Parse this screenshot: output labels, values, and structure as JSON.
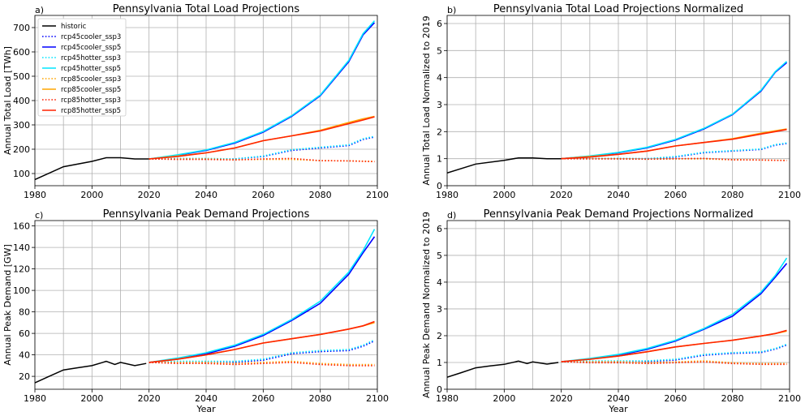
{
  "chart_data": [
    {
      "type": "line",
      "panel_label": "a)",
      "title": "Pennsylvania Total Load Projections",
      "xlabel": "",
      "ylabel": "Annual Total Load [TWh]",
      "xlim": [
        1980,
        2100
      ],
      "ylim": [
        50,
        750
      ],
      "xticks": [
        "1980",
        "2000",
        "2020",
        "2040",
        "2060",
        "2080",
        "2100"
      ],
      "yticks": [
        "100",
        "200",
        "300",
        "400",
        "500",
        "600",
        "700"
      ],
      "ytick_values": [
        100,
        200,
        300,
        400,
        500,
        600,
        700
      ],
      "grid": true,
      "legend": "top-left",
      "historic": {
        "name": "historic",
        "color": "#000000",
        "x": [
          1980,
          1990,
          2000,
          2005,
          2010,
          2015,
          2020
        ],
        "y": [
          75,
          128,
          150,
          165,
          165,
          160,
          160
        ]
      },
      "scenario_x": [
        2020,
        2030,
        2040,
        2050,
        2060,
        2070,
        2080,
        2090,
        2095,
        2099
      ],
      "series": [
        {
          "name": "rcp45cooler_ssp3",
          "color": "#0000ff",
          "dash": "dot",
          "values": [
            160,
            160,
            160,
            160,
            170,
            195,
            205,
            215,
            240,
            250
          ]
        },
        {
          "name": "rcp45cooler_ssp5",
          "color": "#0000ff",
          "dash": "solid",
          "values": [
            160,
            175,
            195,
            225,
            270,
            335,
            420,
            560,
            670,
            720
          ]
        },
        {
          "name": "rcp45hotter_ssp3",
          "color": "#00e5ff",
          "dash": "dot",
          "values": [
            160,
            162,
            162,
            160,
            172,
            198,
            208,
            218,
            243,
            253
          ]
        },
        {
          "name": "rcp45hotter_ssp5",
          "color": "#00e5ff",
          "dash": "solid",
          "values": [
            160,
            177,
            197,
            228,
            273,
            338,
            423,
            565,
            675,
            728
          ]
        },
        {
          "name": "rcp85cooler_ssp3",
          "color": "#ffa500",
          "dash": "dot",
          "values": [
            160,
            160,
            160,
            157,
            158,
            158,
            153,
            152,
            151,
            150
          ]
        },
        {
          "name": "rcp85cooler_ssp5",
          "color": "#ffa500",
          "dash": "solid",
          "values": [
            160,
            172,
            185,
            205,
            235,
            255,
            278,
            310,
            325,
            335
          ]
        },
        {
          "name": "rcp85hotter_ssp3",
          "color": "#ff2200",
          "dash": "dot",
          "values": [
            160,
            158,
            158,
            156,
            160,
            162,
            153,
            152,
            150,
            149
          ]
        },
        {
          "name": "rcp85hotter_ssp5",
          "color": "#ff2200",
          "dash": "solid",
          "values": [
            160,
            170,
            185,
            205,
            235,
            255,
            275,
            305,
            320,
            333
          ]
        }
      ]
    },
    {
      "type": "line",
      "panel_label": "b)",
      "title": "Pennsylvania Total Load Projections Normalized",
      "xlabel": "",
      "ylabel": "Annual Total Load Normalized to 2019",
      "xlim": [
        1980,
        2100
      ],
      "ylim": [
        0,
        6.3
      ],
      "xticks": [
        "1980",
        "2000",
        "2020",
        "2040",
        "2060",
        "2080",
        "2100"
      ],
      "yticks": [
        "0",
        "1",
        "2",
        "3",
        "4",
        "5",
        "6"
      ],
      "ytick_values": [
        0,
        1,
        2,
        3,
        4,
        5,
        6
      ],
      "grid": true,
      "historic": {
        "name": "historic",
        "color": "#000000",
        "x": [
          1980,
          1990,
          2000,
          2005,
          2010,
          2015,
          2020
        ],
        "y": [
          0.47,
          0.8,
          0.94,
          1.03,
          1.03,
          1.0,
          1.0
        ]
      },
      "scenario_x": [
        2020,
        2030,
        2040,
        2050,
        2060,
        2070,
        2080,
        2090,
        2095,
        2099
      ],
      "series": [
        {
          "name": "rcp45cooler_ssp3",
          "color": "#0000ff",
          "dash": "dot",
          "values": [
            1.0,
            1.0,
            1.0,
            1.0,
            1.06,
            1.22,
            1.28,
            1.34,
            1.5,
            1.56
          ]
        },
        {
          "name": "rcp45cooler_ssp5",
          "color": "#0000ff",
          "dash": "solid",
          "values": [
            1.0,
            1.09,
            1.22,
            1.4,
            1.69,
            2.1,
            2.63,
            3.5,
            4.2,
            4.55
          ]
        },
        {
          "name": "rcp45hotter_ssp3",
          "color": "#00e5ff",
          "dash": "dot",
          "values": [
            1.0,
            1.01,
            1.01,
            1.0,
            1.08,
            1.24,
            1.3,
            1.36,
            1.52,
            1.58
          ]
        },
        {
          "name": "rcp45hotter_ssp5",
          "color": "#00e5ff",
          "dash": "solid",
          "values": [
            1.0,
            1.1,
            1.23,
            1.42,
            1.71,
            2.12,
            2.65,
            3.53,
            4.22,
            4.6
          ]
        },
        {
          "name": "rcp85cooler_ssp3",
          "color": "#ffa500",
          "dash": "dot",
          "values": [
            1.0,
            1.0,
            1.0,
            0.98,
            0.99,
            0.99,
            0.96,
            0.95,
            0.94,
            0.94
          ]
        },
        {
          "name": "rcp85cooler_ssp5",
          "color": "#ffa500",
          "dash": "solid",
          "values": [
            1.0,
            1.08,
            1.16,
            1.28,
            1.47,
            1.6,
            1.74,
            1.94,
            2.03,
            2.1
          ]
        },
        {
          "name": "rcp85hotter_ssp3",
          "color": "#ff2200",
          "dash": "dot",
          "values": [
            1.0,
            0.99,
            0.99,
            0.98,
            1.0,
            1.01,
            0.96,
            0.95,
            0.94,
            0.93
          ]
        },
        {
          "name": "rcp85hotter_ssp5",
          "color": "#ff2200",
          "dash": "solid",
          "values": [
            1.0,
            1.06,
            1.16,
            1.28,
            1.47,
            1.6,
            1.72,
            1.91,
            2.0,
            2.08
          ]
        }
      ]
    },
    {
      "type": "line",
      "panel_label": "c)",
      "title": "Pennsylvania Peak Demand Projections",
      "xlabel": "Year",
      "ylabel": "Annual Peak Demand [GW]",
      "xlim": [
        1980,
        2100
      ],
      "ylim": [
        8,
        165
      ],
      "xticks": [
        "1980",
        "2000",
        "2020",
        "2040",
        "2060",
        "2080",
        "2100"
      ],
      "yticks": [
        "20",
        "40",
        "60",
        "80",
        "100",
        "120",
        "140",
        "160"
      ],
      "ytick_values": [
        20,
        40,
        60,
        80,
        100,
        120,
        140,
        160
      ],
      "grid": true,
      "historic": {
        "name": "historic",
        "color": "#000000",
        "x": [
          1980,
          1985,
          1990,
          1995,
          2000,
          2005,
          2008,
          2010,
          2015,
          2019
        ],
        "y": [
          14,
          20,
          26,
          28,
          30,
          34,
          31,
          33,
          30,
          32
        ]
      },
      "scenario_x": [
        2020,
        2030,
        2040,
        2050,
        2060,
        2070,
        2080,
        2090,
        2095,
        2099
      ],
      "series": [
        {
          "name": "rcp45cooler_ssp3",
          "color": "#0000ff",
          "dash": "dot",
          "values": [
            33,
            33,
            33,
            33,
            35,
            41,
            43,
            44,
            48,
            53
          ]
        },
        {
          "name": "rcp45cooler_ssp5",
          "color": "#0000ff",
          "dash": "solid",
          "values": [
            33,
            36,
            41,
            48,
            58,
            72,
            88,
            115,
            135,
            150
          ]
        },
        {
          "name": "rcp45hotter_ssp3",
          "color": "#00e5ff",
          "dash": "dot",
          "values": [
            33,
            34,
            34,
            34,
            36,
            42,
            44,
            45,
            49,
            54
          ]
        },
        {
          "name": "rcp45hotter_ssp5",
          "color": "#00e5ff",
          "dash": "solid",
          "values": [
            33,
            37,
            42,
            49,
            59,
            73,
            90,
            117,
            137,
            157
          ]
        },
        {
          "name": "rcp85cooler_ssp3",
          "color": "#ffa500",
          "dash": "dot",
          "values": [
            33,
            33,
            33,
            32,
            33,
            34,
            32,
            31,
            31,
            31
          ]
        },
        {
          "name": "rcp85cooler_ssp5",
          "color": "#ffa500",
          "dash": "solid",
          "values": [
            33,
            36,
            40,
            45,
            51,
            55,
            59,
            64,
            67,
            70
          ]
        },
        {
          "name": "rcp85hotter_ssp3",
          "color": "#ff2200",
          "dash": "dot",
          "values": [
            33,
            32,
            32,
            31,
            32,
            33,
            31,
            30,
            30,
            30
          ]
        },
        {
          "name": "rcp85hotter_ssp5",
          "color": "#ff2200",
          "dash": "solid",
          "values": [
            33,
            36,
            40,
            45,
            51,
            55,
            59,
            64,
            67,
            71
          ]
        }
      ]
    },
    {
      "type": "line",
      "panel_label": "d)",
      "title": "Pennsylvania Peak Demand Projections Normalized",
      "xlabel": "Year",
      "ylabel": "Annual Peak Demand Normalized to 2019",
      "xlim": [
        1980,
        2100
      ],
      "ylim": [
        0,
        6.3
      ],
      "xticks": [
        "1980",
        "2000",
        "2020",
        "2040",
        "2060",
        "2080",
        "2100"
      ],
      "yticks": [
        "0",
        "1",
        "2",
        "3",
        "4",
        "5",
        "6"
      ],
      "ytick_values": [
        0,
        1,
        2,
        3,
        4,
        5,
        6
      ],
      "grid": true,
      "historic": {
        "name": "historic",
        "color": "#000000",
        "x": [
          1980,
          1985,
          1990,
          1995,
          2000,
          2005,
          2008,
          2010,
          2015,
          2019
        ],
        "y": [
          0.45,
          0.62,
          0.8,
          0.87,
          0.93,
          1.05,
          0.96,
          1.02,
          0.94,
          1.0
        ]
      },
      "scenario_x": [
        2020,
        2030,
        2040,
        2050,
        2060,
        2070,
        2080,
        2090,
        2095,
        2099
      ],
      "series": [
        {
          "name": "rcp45cooler_ssp3",
          "color": "#0000ff",
          "dash": "dot",
          "values": [
            1.03,
            1.03,
            1.03,
            1.03,
            1.09,
            1.27,
            1.34,
            1.37,
            1.5,
            1.65
          ]
        },
        {
          "name": "rcp45cooler_ssp5",
          "color": "#0000ff",
          "dash": "solid",
          "values": [
            1.03,
            1.12,
            1.27,
            1.49,
            1.8,
            2.24,
            2.73,
            3.57,
            4.19,
            4.7
          ]
        },
        {
          "name": "rcp45hotter_ssp3",
          "color": "#00e5ff",
          "dash": "dot",
          "values": [
            1.03,
            1.06,
            1.06,
            1.06,
            1.12,
            1.3,
            1.37,
            1.4,
            1.52,
            1.68
          ]
        },
        {
          "name": "rcp45hotter_ssp5",
          "color": "#00e5ff",
          "dash": "solid",
          "values": [
            1.03,
            1.15,
            1.3,
            1.52,
            1.83,
            2.27,
            2.8,
            3.63,
            4.25,
            4.9
          ]
        },
        {
          "name": "rcp85cooler_ssp3",
          "color": "#ffa500",
          "dash": "dot",
          "values": [
            1.03,
            1.03,
            1.03,
            0.99,
            1.02,
            1.06,
            0.99,
            0.96,
            0.96,
            0.96
          ]
        },
        {
          "name": "rcp85cooler_ssp5",
          "color": "#ffa500",
          "dash": "solid",
          "values": [
            1.03,
            1.12,
            1.24,
            1.4,
            1.58,
            1.71,
            1.83,
            1.99,
            2.08,
            2.17
          ]
        },
        {
          "name": "rcp85hotter_ssp3",
          "color": "#ff2200",
          "dash": "dot",
          "values": [
            1.03,
            0.99,
            0.99,
            0.96,
            0.99,
            1.02,
            0.96,
            0.93,
            0.93,
            0.93
          ]
        },
        {
          "name": "rcp85hotter_ssp5",
          "color": "#ff2200",
          "dash": "solid",
          "values": [
            1.03,
            1.12,
            1.24,
            1.4,
            1.58,
            1.71,
            1.83,
            1.99,
            2.08,
            2.2
          ]
        }
      ]
    }
  ]
}
